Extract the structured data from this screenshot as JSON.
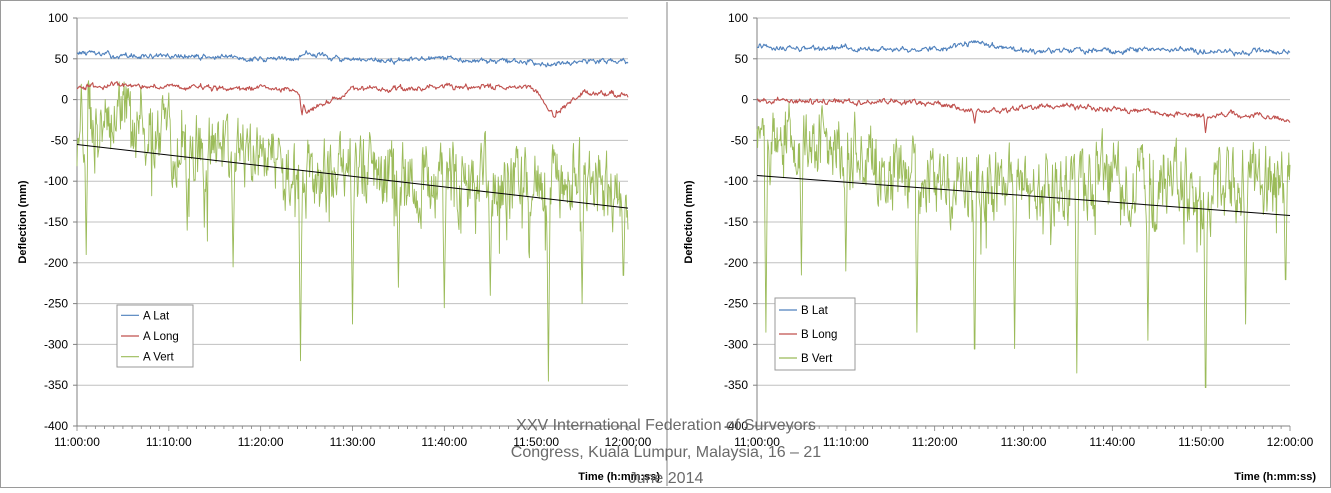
{
  "footer": {
    "line1": "XXV International Federation of Surveyors",
    "line2": "Congress, Kuala Lumpur, Malaysia, 16 – 21",
    "line3": "June 2014"
  },
  "colors": {
    "lat": "#4f81bd",
    "long": "#c0504d",
    "vert": "#9bbb59",
    "trend": "#000000",
    "grid": "#c0c0c0",
    "axis": "#808080",
    "border": "#9a9a9a"
  },
  "chart_data": [
    {
      "type": "line",
      "title": "",
      "xlabel": "Time (h:mm:ss)",
      "ylabel": "Deflection (mm)",
      "xlim": [
        "11:00:00",
        "12:00:00"
      ],
      "ylim": [
        -400,
        100
      ],
      "x_ticks": [
        "11:00:00",
        "11:10:00",
        "11:20:00",
        "11:30:00",
        "11:40:00",
        "11:50:00",
        "12:00:00"
      ],
      "y_ticks": [
        100,
        50,
        0,
        -50,
        -100,
        -150,
        -200,
        -250,
        -300,
        -350,
        -400
      ],
      "grid": "horizontal",
      "legend_position": "bottom-left",
      "series": [
        {
          "name": "A Lat",
          "color_key": "lat",
          "x": [
            "11:00:00",
            "11:05:00",
            "11:10:00",
            "11:15:00",
            "11:20:00",
            "11:24:00",
            "11:25:00",
            "11:30:00",
            "11:35:00",
            "11:40:00",
            "11:45:00",
            "11:50:00",
            "11:55:00",
            "12:00:00"
          ],
          "y": [
            58,
            53,
            53,
            52,
            50,
            50,
            58,
            47,
            48,
            50,
            48,
            45,
            47,
            48
          ]
        },
        {
          "name": "A Long",
          "color_key": "long",
          "x": [
            "11:00:00",
            "11:05:00",
            "11:10:00",
            "11:15:00",
            "11:20:00",
            "11:24:00",
            "11:25:00",
            "11:30:00",
            "11:35:00",
            "11:40:00",
            "11:45:00",
            "11:50:00",
            "11:52:00",
            "11:55:00",
            "12:00:00"
          ],
          "y": [
            15,
            18,
            16,
            14,
            14,
            12,
            -15,
            12,
            14,
            14,
            16,
            12,
            -20,
            8,
            5
          ],
          "min_points": [
            {
              "x": "11:24:30",
              "y": -20
            },
            {
              "x": "11:52:00",
              "y": -22
            }
          ]
        },
        {
          "name": "A Vert",
          "color_key": "vert",
          "x": [
            "11:00:00",
            "11:05:00",
            "11:10:00",
            "11:15:00",
            "11:20:00",
            "11:25:00",
            "11:30:00",
            "11:35:00",
            "11:40:00",
            "11:45:00",
            "11:50:00",
            "11:55:00",
            "12:00:00"
          ],
          "y": [
            -30,
            -20,
            -50,
            -60,
            -75,
            -95,
            -85,
            -90,
            -100,
            -95,
            -110,
            -100,
            -120
          ],
          "min_points": [
            {
              "x": "11:01:00",
              "y": -190
            },
            {
              "x": "11:12:00",
              "y": -160
            },
            {
              "x": "11:17:00",
              "y": -205
            },
            {
              "x": "11:24:20",
              "y": -320
            },
            {
              "x": "11:30:00",
              "y": -275
            },
            {
              "x": "11:35:00",
              "y": -230
            },
            {
              "x": "11:40:00",
              "y": -255
            },
            {
              "x": "11:45:00",
              "y": -240
            },
            {
              "x": "11:51:20",
              "y": -345
            },
            {
              "x": "11:55:00",
              "y": -250
            },
            {
              "x": "11:59:30",
              "y": -235
            }
          ]
        }
      ],
      "trendline": {
        "x": [
          "11:00:00",
          "12:00:00"
        ],
        "y": [
          -55,
          -133
        ]
      }
    },
    {
      "type": "line",
      "title": "",
      "xlabel": "Time (h:mm:ss)",
      "ylabel": "Deflection (mm)",
      "xlim": [
        "11:00:00",
        "12:00:00"
      ],
      "ylim": [
        -400,
        100
      ],
      "x_ticks": [
        "11:00:00",
        "11:10:00",
        "11:20:00",
        "11:30:00",
        "11:40:00",
        "11:50:00",
        "12:00:00"
      ],
      "y_ticks": [
        100,
        50,
        0,
        -50,
        -100,
        -150,
        -200,
        -250,
        -300,
        -350,
        -400
      ],
      "grid": "horizontal",
      "legend_position": "bottom-left",
      "series": [
        {
          "name": "B Lat",
          "color_key": "lat",
          "x": [
            "11:00:00",
            "11:05:00",
            "11:10:00",
            "11:15:00",
            "11:20:00",
            "11:25:00",
            "11:30:00",
            "11:35:00",
            "11:40:00",
            "11:45:00",
            "11:50:00",
            "11:55:00",
            "12:00:00"
          ],
          "y": [
            65,
            62,
            63,
            62,
            62,
            70,
            58,
            60,
            60,
            62,
            60,
            58,
            60
          ]
        },
        {
          "name": "B Long",
          "color_key": "long",
          "x": [
            "11:00:00",
            "11:05:00",
            "11:10:00",
            "11:15:00",
            "11:20:00",
            "11:25:00",
            "11:30:00",
            "11:35:00",
            "11:40:00",
            "11:45:00",
            "11:50:00",
            "11:55:00",
            "12:00:00"
          ],
          "y": [
            -2,
            -3,
            -2,
            -3,
            -4,
            -15,
            -10,
            -8,
            -12,
            -15,
            -20,
            -18,
            -25
          ],
          "min_points": [
            {
              "x": "11:24:30",
              "y": -30
            },
            {
              "x": "11:50:30",
              "y": -42
            }
          ]
        },
        {
          "name": "B Vert",
          "color_key": "vert",
          "x": [
            "11:00:00",
            "11:05:00",
            "11:10:00",
            "11:15:00",
            "11:20:00",
            "11:25:00",
            "11:30:00",
            "11:35:00",
            "11:40:00",
            "11:45:00",
            "11:50:00",
            "11:55:00",
            "12:00:00"
          ],
          "y": [
            -50,
            -45,
            -60,
            -90,
            -100,
            -110,
            -105,
            -100,
            -95,
            -100,
            -120,
            -95,
            -100
          ],
          "min_points": [
            {
              "x": "11:01:00",
              "y": -285
            },
            {
              "x": "11:05:00",
              "y": -215
            },
            {
              "x": "11:10:00",
              "y": -210
            },
            {
              "x": "11:18:00",
              "y": -285
            },
            {
              "x": "11:24:30",
              "y": -345
            },
            {
              "x": "11:29:00",
              "y": -305
            },
            {
              "x": "11:36:00",
              "y": -335
            },
            {
              "x": "11:44:00",
              "y": -295
            },
            {
              "x": "11:50:30",
              "y": -400
            },
            {
              "x": "11:55:00",
              "y": -275
            },
            {
              "x": "11:59:30",
              "y": -245
            }
          ]
        }
      ],
      "trendline": {
        "x": [
          "11:00:00",
          "12:00:00"
        ],
        "y": [
          -93,
          -142
        ]
      }
    }
  ]
}
